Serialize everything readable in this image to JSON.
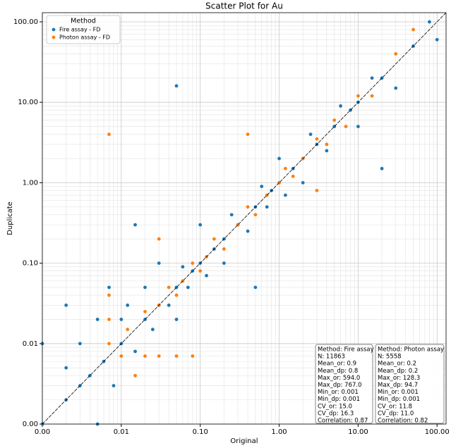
{
  "chart_data": {
    "type": "scatter",
    "title": "Scatter Plot for Au",
    "x_label": "Original",
    "y_label": "Duplicate",
    "log_x": true,
    "log_y": true,
    "grid": true,
    "minor_grid": true,
    "legend_title": "Method",
    "legend_position": "upper left",
    "identity_line": true,
    "xlim": [
      0.001,
      130
    ],
    "ylim": [
      0.001,
      130
    ],
    "xticks": [
      {
        "value": 0.001,
        "label": "0.00"
      },
      {
        "value": 0.01,
        "label": "0.01"
      },
      {
        "value": 0.1,
        "label": "0.10"
      },
      {
        "value": 1,
        "label": "1.00"
      },
      {
        "value": 10,
        "label": "10.00"
      },
      {
        "value": 100,
        "label": "100.00"
      }
    ],
    "yticks": [
      {
        "value": 0.001,
        "label": "0.00"
      },
      {
        "value": 0.01,
        "label": "0.01"
      },
      {
        "value": 0.1,
        "label": "0.10"
      },
      {
        "value": 1,
        "label": "1.00"
      },
      {
        "value": 10,
        "label": "10.00"
      },
      {
        "value": 100,
        "label": "100.00"
      }
    ],
    "series": [
      {
        "name": "Fire assay - FD",
        "color": "#1f77b4",
        "x": [
          0.001,
          0.001,
          0.002,
          0.002,
          0.003,
          0.003,
          0.004,
          0.005,
          0.005,
          0.006,
          0.007,
          0.008,
          0.01,
          0.01,
          0.012,
          0.015,
          0.02,
          0.02,
          0.025,
          0.03,
          0.03,
          0.04,
          0.05,
          0.05,
          0.06,
          0.07,
          0.08,
          0.1,
          0.1,
          0.12,
          0.15,
          0.2,
          0.2,
          0.25,
          0.3,
          0.4,
          0.5,
          0.6,
          0.7,
          0.8,
          1,
          1,
          1.2,
          1.5,
          2,
          2,
          2.5,
          3,
          4,
          5,
          6,
          8,
          10,
          10,
          15,
          20,
          30,
          50,
          80,
          100,
          0.05,
          0.002,
          20,
          0.5,
          0.015
        ],
        "values": [
          0.001,
          0.01,
          0.002,
          0.005,
          0.003,
          0.01,
          0.004,
          0.001,
          0.02,
          0.006,
          0.05,
          0.003,
          0.01,
          0.02,
          0.03,
          0.008,
          0.02,
          0.05,
          0.015,
          0.03,
          0.1,
          0.03,
          0.05,
          0.02,
          0.09,
          0.05,
          0.08,
          0.1,
          0.3,
          0.07,
          0.15,
          0.2,
          0.1,
          0.4,
          0.3,
          0.25,
          0.5,
          0.9,
          0.5,
          0.8,
          1,
          2,
          0.7,
          1.5,
          2,
          1,
          4,
          3,
          2.5,
          5,
          9,
          8,
          10,
          5,
          20,
          20,
          15,
          50,
          100,
          60,
          16,
          0.03,
          1.5,
          0.05,
          0.3
        ]
      },
      {
        "name": "Photon assay - FD",
        "color": "#ff7f0e",
        "x": [
          0.007,
          0.007,
          0.007,
          0.007,
          0.01,
          0.02,
          0.03,
          0.05,
          0.08,
          0.012,
          0.02,
          0.03,
          0.04,
          0.05,
          0.06,
          0.08,
          0.1,
          0.12,
          0.15,
          0.2,
          0.3,
          0.4,
          0.5,
          0.7,
          1,
          1.2,
          1.5,
          2,
          3,
          4,
          5,
          7,
          10,
          15,
          30,
          50,
          0.4,
          0.03,
          3,
          0.015
        ],
        "values": [
          0.01,
          0.02,
          0.04,
          4,
          0.007,
          0.007,
          0.007,
          0.007,
          0.007,
          0.015,
          0.025,
          0.03,
          0.05,
          0.04,
          0.06,
          0.1,
          0.08,
          0.12,
          0.2,
          0.15,
          0.3,
          0.5,
          0.4,
          0.7,
          1,
          1.5,
          1.2,
          2,
          3.5,
          3,
          6,
          5,
          12,
          12,
          40,
          80,
          4,
          0.2,
          0.8,
          0.004
        ]
      }
    ],
    "annotations": [
      {
        "lines": [
          "Method: Fire assay",
          "N: 11863",
          "Mean_or: 0.9",
          "Mean_dp: 0.8",
          "Max_or: 594.0",
          "Max_dp: 767.0",
          "Min_or: 0.001",
          "Min_dp: 0.001",
          "CV_or: 15.0",
          "CV_dp: 16.3",
          "Correlation: 0.87"
        ]
      },
      {
        "lines": [
          "Method: Photon assay",
          "N: 5558",
          "Mean_or: 0.2",
          "Mean_dp: 0.2",
          "Max_or: 128.3",
          "Max_dp: 94.7",
          "Min_or: 0.001",
          "Min_dp: 0.001",
          "CV_or: 11.8",
          "CV_dp: 11.0",
          "Correlation: 0.82"
        ]
      }
    ]
  }
}
